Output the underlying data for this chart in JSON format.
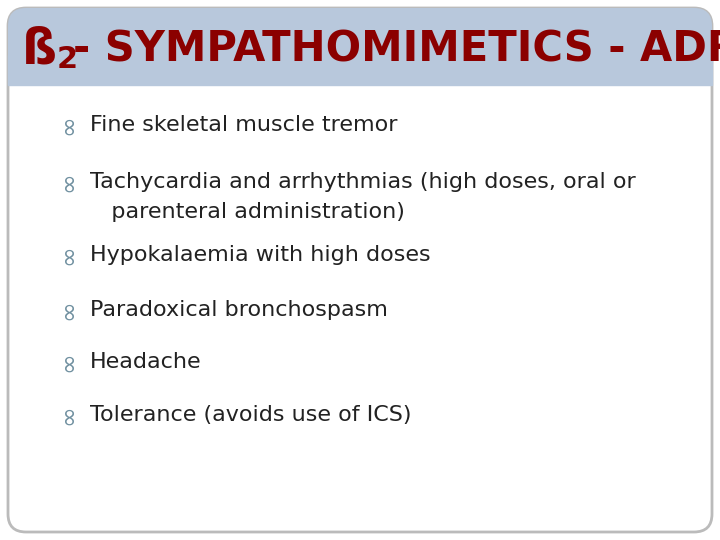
{
  "title_beta": "ß",
  "title_sub": "2",
  "title_rest": "- SYMPATHOMIMETICS - ADRs",
  "title_color": "#8B0000",
  "title_bg_color": "#b8c8dc",
  "bg_color": "#ffffff",
  "border_color": "#bbbbbb",
  "bullet_color": "#7090a0",
  "text_color": "#222222",
  "bullet_items": [
    [
      "Fine skeletal muscle tremor"
    ],
    [
      "Tachycardia and arrhythmias (high doses, oral or",
      "   parenteral administration)"
    ],
    [
      "Hypokalaemia with high doses"
    ],
    [
      "Paradoxical bronchospasm"
    ],
    [
      "Headache"
    ],
    [
      "Tolerance (avoids use of ICS)"
    ]
  ],
  "title_fontsize": 30,
  "body_fontsize": 16,
  "figsize": [
    7.2,
    5.4
  ],
  "dpi": 100
}
